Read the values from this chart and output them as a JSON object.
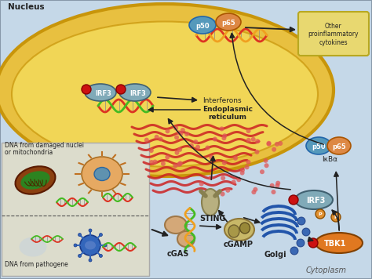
{
  "bg_color": "#c5d8e8",
  "nucleus_fill": "#e8c040",
  "nucleus_edge": "#c8950a",
  "nucleus_inner": "#f5e060",
  "cytoplasm_label": "Cytoplasm",
  "nucleus_label": "Nucleus",
  "panel_bg": "#dcdccc",
  "dna_red": "#dd3322",
  "dna_green": "#44bb22",
  "dna_orange": "#f0a020",
  "irf3_color": "#80aab8",
  "irf3_dot": "#cc1111",
  "p50_color": "#5599bb",
  "p65_color": "#dd8844",
  "tbk1_color": "#e07820",
  "sting_color": "#b8b080",
  "cgas_color": "#d4a878",
  "cgamp_color": "#c8b868",
  "golgi_color": "#2255aa",
  "er_red": "#cc2222",
  "er_dot": "#e05555",
  "arrow_color": "#222222",
  "cytokine_fill": "#e8d870",
  "cytokine_edge": "#b8a820",
  "mito_outer": "#8B4010",
  "mito_inner": "#228B22",
  "cell_outer": "#e8a050",
  "cell_nucleus_color": "#5090b8",
  "virus_color": "#3366bb",
  "interferon_label": "Interferons",
  "other_cyto_label": "Other\nproinflammatory\ncytokines",
  "er_label": "Endoplasmic\nreticulum",
  "sting_label": "STING",
  "cgas_label": "cGAS",
  "cgamp_label": "cGAMP",
  "golgi_label": "Golgi",
  "tbk1_label": "TBK1",
  "ikb_label": "IκBα",
  "dna_damaged_label1": "DNA from damaged nuclei",
  "dna_damaged_label2": "or mitochondria",
  "dna_pathogen_label": "DNA from pathogene",
  "irf3_label": "IRF3",
  "p50_label": "p50",
  "p65_label": "p65",
  "p_color": "#e09030"
}
